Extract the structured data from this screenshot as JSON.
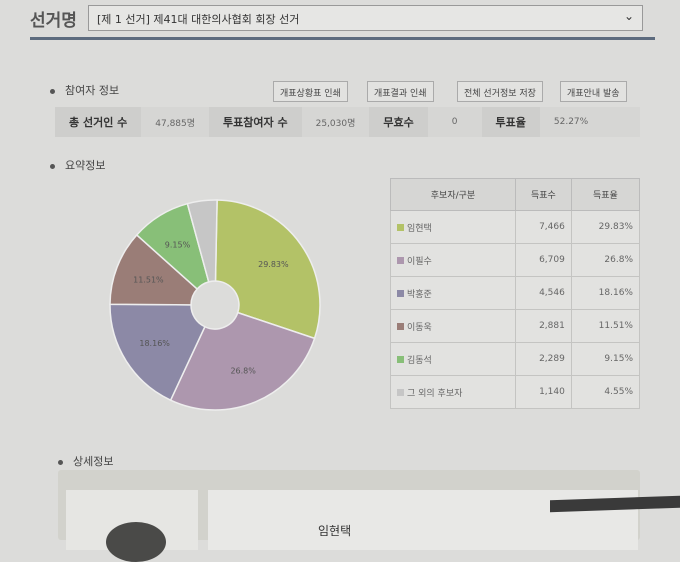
{
  "header": {
    "label": "선거명",
    "selected": "[제 1 선거] 제41대 대한의사협회 회장 선거"
  },
  "participants": {
    "title": "참여자 정보",
    "buttons": [
      "개표상황표 인쇄",
      "개표결과 인쇄",
      "전체 선거정보 저장",
      "개표안내 발송"
    ],
    "stats": [
      {
        "k": "총 선거인 수",
        "v": "47,885명"
      },
      {
        "k": "투표참여자 수",
        "v": "25,030명"
      },
      {
        "k": "무효수",
        "v": "0"
      },
      {
        "k": "투표율",
        "v": "52.27%"
      }
    ]
  },
  "summary": {
    "title": "요약정보",
    "columns": [
      "후보자/구분",
      "득표수",
      "득표율"
    ],
    "rows": [
      {
        "name": "임현택",
        "votes": "7,466",
        "pct": "29.83%",
        "color": "#b3c267"
      },
      {
        "name": "이필수",
        "votes": "6,709",
        "pct": "26.8%",
        "color": "#ad97ae"
      },
      {
        "name": "박홍준",
        "votes": "4,546",
        "pct": "18.16%",
        "color": "#8c89a6"
      },
      {
        "name": "이동욱",
        "votes": "2,881",
        "pct": "11.51%",
        "color": "#9a7d77"
      },
      {
        "name": "김동석",
        "votes": "2,289",
        "pct": "9.15%",
        "color": "#88bf78"
      },
      {
        "name": "그 외의 후보자",
        "votes": "1,140",
        "pct": "4.55%",
        "color": "#c6c6c6"
      }
    ]
  },
  "chart_data": {
    "type": "pie",
    "donut": true,
    "categories": [
      "임현택",
      "이필수",
      "박홍준",
      "이동욱",
      "김동석",
      "그 외의 후보자"
    ],
    "values": [
      29.83,
      26.8,
      18.16,
      11.51,
      9.15,
      4.55
    ],
    "labels": [
      "29.83%",
      "26.8%",
      "18.16%",
      "11.51%",
      "9.15%",
      ""
    ]
  },
  "detail": {
    "title": "상세정보",
    "name": "임현택"
  }
}
